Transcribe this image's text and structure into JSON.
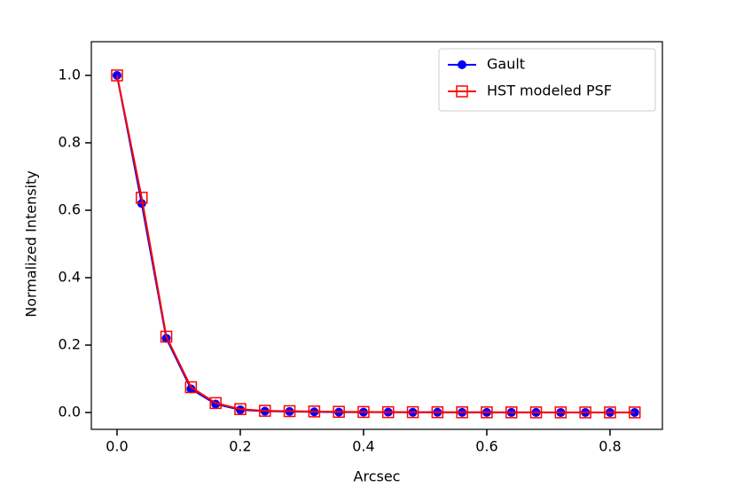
{
  "chart_data": {
    "type": "line",
    "xlabel": "Arcsec",
    "ylabel": "Normalized Intensity",
    "x": [
      0,
      0.04,
      0.08,
      0.12,
      0.16,
      0.2,
      0.24,
      0.28,
      0.32,
      0.36,
      0.4,
      0.44,
      0.48,
      0.52,
      0.56,
      0.6,
      0.64,
      0.68,
      0.72,
      0.76,
      0.8,
      0.84
    ],
    "series": [
      {
        "name": "Gault",
        "color": "#0000ff",
        "marker": "circle",
        "values": [
          1.0,
          0.62,
          0.22,
          0.07,
          0.025,
          0.008,
          0.004,
          0.003,
          0.002,
          0.001,
          0.001,
          0.001,
          0.0005,
          0.0005,
          0.0003,
          0.0003,
          0.0002,
          0.0002,
          0.0001,
          0.0001,
          0.0001,
          0.0001
        ]
      },
      {
        "name": "HST modeled PSF",
        "color": "#ff0000",
        "marker": "square",
        "values": [
          1.0,
          0.637,
          0.225,
          0.075,
          0.028,
          0.01,
          0.005,
          0.004,
          0.003,
          0.002,
          0.0015,
          0.001,
          0.001,
          0.0008,
          0.0006,
          0.0005,
          0.0004,
          0.0003,
          0.0003,
          0.0002,
          0.0002,
          0.0002
        ]
      }
    ],
    "xlim": [
      -0.0417,
      0.885
    ],
    "ylim": [
      -0.05,
      1.1
    ],
    "xticks": [
      {
        "value": 0,
        "label": "0.0"
      },
      0.2,
      0.4,
      0.6,
      0.8
    ],
    "yticks": [
      {
        "value": 0,
        "label": "0.0"
      },
      0.2,
      0.4,
      0.6,
      0.8,
      {
        "value": 1,
        "label": "1.0"
      }
    ],
    "legend": "upper right"
  }
}
